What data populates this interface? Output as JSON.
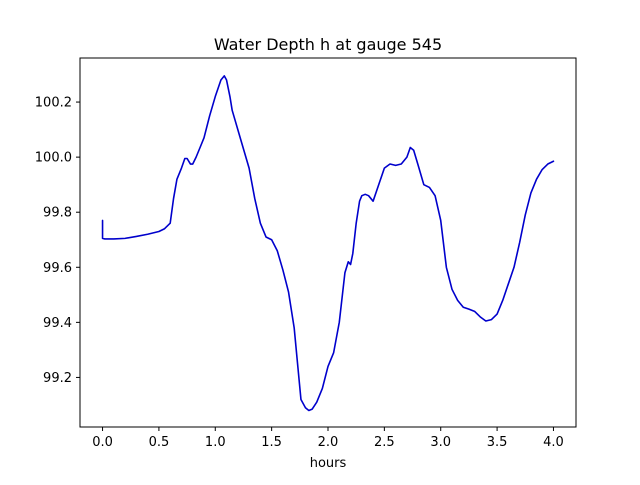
{
  "chart_data": {
    "type": "line",
    "title": "Water Depth h at gauge 545",
    "xlabel": "hours",
    "ylabel": "",
    "xlim": [
      -0.2,
      4.2
    ],
    "ylim": [
      99.02,
      100.36
    ],
    "xticks": [
      0.0,
      0.5,
      1.0,
      1.5,
      2.0,
      2.5,
      3.0,
      3.5,
      4.0
    ],
    "xtick_labels": [
      "0.0",
      "0.5",
      "1.0",
      "1.5",
      "2.0",
      "2.5",
      "3.0",
      "3.5",
      "4.0"
    ],
    "yticks": [
      99.2,
      99.4,
      99.6,
      99.8,
      100.0,
      100.2
    ],
    "ytick_labels": [
      "99.2",
      "99.4",
      "99.6",
      "99.8",
      "100.0",
      "100.2"
    ],
    "grid": false,
    "legend": "none",
    "series": [
      {
        "color": "#0000cc",
        "x": [
          0.0,
          0.0,
          0.02,
          0.1,
          0.2,
          0.3,
          0.4,
          0.5,
          0.55,
          0.6,
          0.63,
          0.66,
          0.7,
          0.73,
          0.75,
          0.78,
          0.8,
          0.83,
          0.87,
          0.9,
          0.95,
          1.0,
          1.05,
          1.08,
          1.1,
          1.13,
          1.15,
          1.2,
          1.25,
          1.3,
          1.35,
          1.4,
          1.45,
          1.5,
          1.55,
          1.6,
          1.65,
          1.7,
          1.73,
          1.76,
          1.8,
          1.83,
          1.86,
          1.9,
          1.95,
          2.0,
          2.05,
          2.1,
          2.15,
          2.18,
          2.2,
          2.22,
          2.25,
          2.28,
          2.3,
          2.33,
          2.36,
          2.4,
          2.45,
          2.5,
          2.55,
          2.6,
          2.65,
          2.7,
          2.73,
          2.76,
          2.8,
          2.85,
          2.9,
          2.95,
          3.0,
          3.05,
          3.1,
          3.15,
          3.2,
          3.25,
          3.3,
          3.35,
          3.4,
          3.45,
          3.5,
          3.55,
          3.6,
          3.65,
          3.7,
          3.75,
          3.8,
          3.85,
          3.9,
          3.95,
          4.0
        ],
        "y": [
          99.77,
          99.705,
          99.703,
          99.703,
          99.705,
          99.712,
          99.72,
          99.73,
          99.74,
          99.76,
          99.85,
          99.92,
          99.96,
          99.995,
          99.995,
          99.975,
          99.975,
          100.0,
          100.04,
          100.07,
          100.15,
          100.22,
          100.28,
          100.295,
          100.28,
          100.22,
          100.17,
          100.1,
          100.03,
          99.96,
          99.85,
          99.76,
          99.71,
          99.7,
          99.66,
          99.59,
          99.51,
          99.38,
          99.25,
          99.12,
          99.09,
          99.08,
          99.085,
          99.11,
          99.16,
          99.24,
          99.29,
          99.4,
          99.58,
          99.62,
          99.61,
          99.65,
          99.76,
          99.84,
          99.86,
          99.865,
          99.86,
          99.84,
          99.9,
          99.96,
          99.975,
          99.97,
          99.975,
          100.0,
          100.035,
          100.025,
          99.97,
          99.9,
          99.89,
          99.86,
          99.77,
          99.6,
          99.52,
          99.48,
          99.455,
          99.448,
          99.44,
          99.42,
          99.405,
          99.41,
          99.43,
          99.48,
          99.54,
          99.6,
          99.69,
          99.79,
          99.87,
          99.92,
          99.955,
          99.975,
          99.985
        ]
      }
    ]
  }
}
